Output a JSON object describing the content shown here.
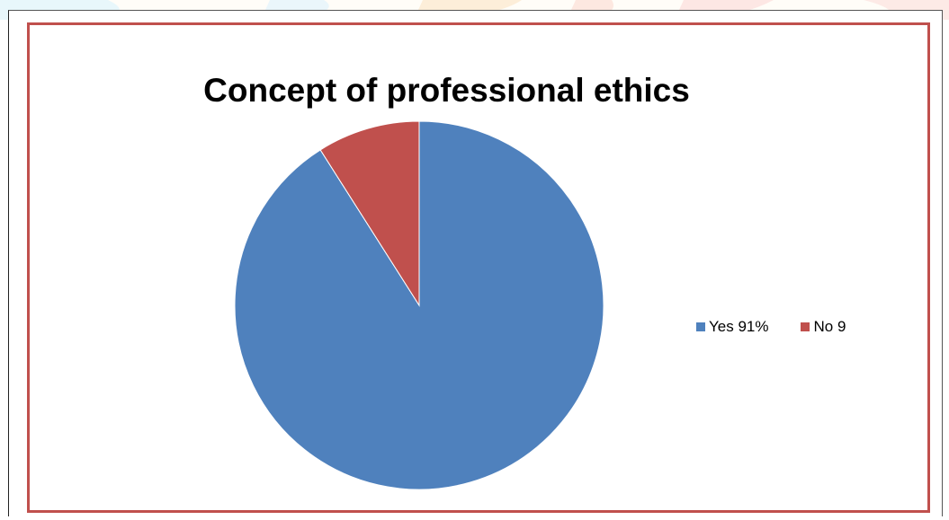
{
  "chart_data": {
    "type": "pie",
    "title": "Concept of professional ethics",
    "slices": [
      {
        "label": "Yes 91%",
        "value": 91,
        "color": "#4f81bd"
      },
      {
        "label": "No 9",
        "value": 9,
        "color": "#c0504d"
      }
    ],
    "legend_position": "right",
    "border_color": "#c0504d"
  }
}
